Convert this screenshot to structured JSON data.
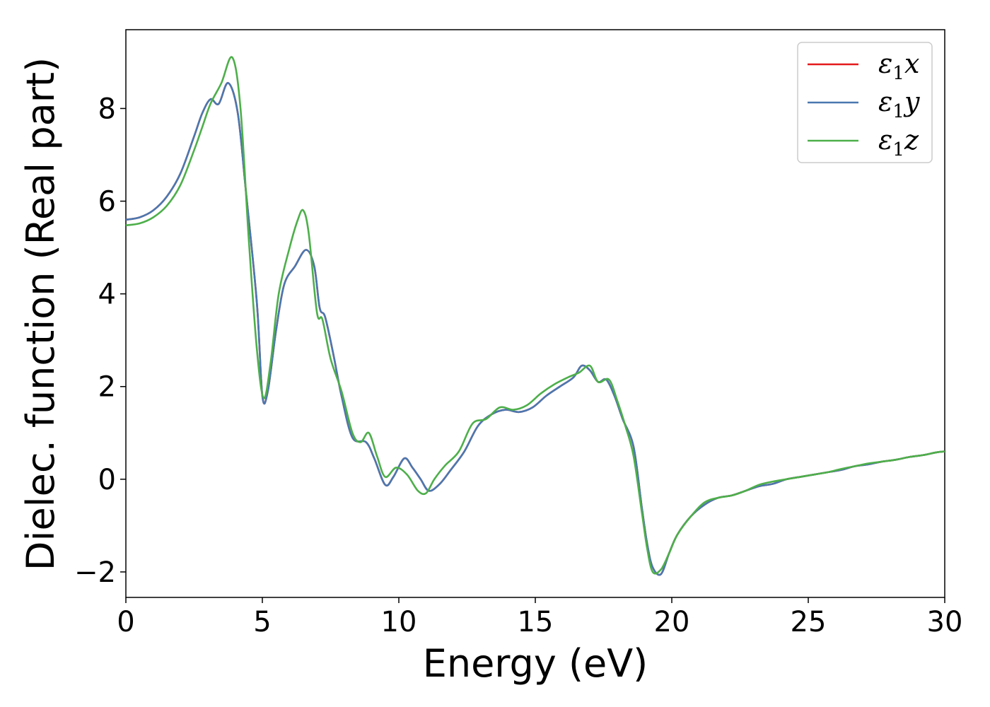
{
  "chart_data": {
    "type": "line",
    "xlabel": "Energy (eV)",
    "ylabel": "Dielec. function (Real part)",
    "xlim": [
      0,
      30
    ],
    "ylim": [
      -2.55,
      9.7
    ],
    "xticks": [
      0,
      5,
      10,
      15,
      20,
      25,
      30
    ],
    "yticks": [
      -2,
      0,
      2,
      4,
      6,
      8
    ],
    "grid": false,
    "legend_position": "top-right",
    "series": [
      {
        "name": "ε1x",
        "legend_symbol": "ε",
        "legend_sub": "1",
        "legend_var": "x",
        "color": "#e41a1c",
        "x": [
          0,
          0.5,
          1,
          1.5,
          2,
          2.5,
          2.8,
          3.1,
          3.4,
          3.75,
          4.1,
          4.4,
          4.8,
          5.0,
          5.2,
          5.5,
          5.8,
          6.2,
          6.6,
          6.9,
          7.1,
          7.3,
          7.6,
          7.9,
          8.3,
          8.8,
          9.1,
          9.5,
          9.8,
          10.2,
          10.5,
          10.8,
          11.1,
          11.5,
          11.9,
          12.4,
          12.9,
          13.4,
          13.9,
          14.4,
          14.9,
          15.4,
          15.9,
          16.4,
          16.7,
          17.0,
          17.3,
          17.6,
          17.9,
          18.2,
          18.6,
          18.9,
          19.1,
          19.3,
          19.6,
          19.9,
          20.2,
          20.7,
          21.2,
          21.7,
          22.2,
          22.7,
          23.2,
          23.7,
          24.2,
          24.7,
          25.2,
          25.7,
          26.2,
          26.7,
          27.2,
          27.7,
          28.2,
          28.7,
          29.2,
          29.7,
          30
        ],
        "y": [
          5.6,
          5.65,
          5.8,
          6.1,
          6.6,
          7.4,
          7.9,
          8.2,
          8.1,
          8.55,
          7.9,
          6.2,
          3.8,
          1.8,
          1.9,
          3.2,
          4.2,
          4.6,
          4.95,
          4.6,
          3.7,
          3.5,
          2.7,
          1.8,
          0.9,
          0.8,
          0.45,
          -0.12,
          0.05,
          0.45,
          0.25,
          0.0,
          -0.25,
          -0.1,
          0.2,
          0.6,
          1.15,
          1.4,
          1.5,
          1.45,
          1.55,
          1.8,
          2.0,
          2.2,
          2.45,
          2.35,
          2.1,
          2.15,
          1.8,
          1.3,
          0.7,
          -0.6,
          -1.4,
          -1.9,
          -2.05,
          -1.6,
          -1.2,
          -0.8,
          -0.55,
          -0.4,
          -0.35,
          -0.25,
          -0.15,
          -0.1,
          0.0,
          0.05,
          0.1,
          0.15,
          0.2,
          0.28,
          0.32,
          0.38,
          0.42,
          0.48,
          0.52,
          0.58,
          0.6
        ]
      },
      {
        "name": "ε1y",
        "legend_symbol": "ε",
        "legend_sub": "1",
        "legend_var": "y",
        "color": "#4a78b0",
        "x": [
          0,
          0.5,
          1,
          1.5,
          2,
          2.5,
          2.8,
          3.1,
          3.4,
          3.75,
          4.1,
          4.4,
          4.8,
          5.0,
          5.2,
          5.5,
          5.8,
          6.2,
          6.6,
          6.9,
          7.1,
          7.3,
          7.6,
          7.9,
          8.3,
          8.8,
          9.1,
          9.5,
          9.8,
          10.2,
          10.5,
          10.8,
          11.1,
          11.5,
          11.9,
          12.4,
          12.9,
          13.4,
          13.9,
          14.4,
          14.9,
          15.4,
          15.9,
          16.4,
          16.7,
          17.0,
          17.3,
          17.6,
          17.9,
          18.2,
          18.6,
          18.9,
          19.1,
          19.3,
          19.6,
          19.9,
          20.2,
          20.7,
          21.2,
          21.7,
          22.2,
          22.7,
          23.2,
          23.7,
          24.2,
          24.7,
          25.2,
          25.7,
          26.2,
          26.7,
          27.2,
          27.7,
          28.2,
          28.7,
          29.2,
          29.7,
          30
        ],
        "y": [
          5.6,
          5.65,
          5.8,
          6.1,
          6.6,
          7.4,
          7.9,
          8.2,
          8.1,
          8.55,
          7.9,
          6.2,
          3.8,
          1.8,
          1.9,
          3.2,
          4.2,
          4.6,
          4.95,
          4.6,
          3.7,
          3.5,
          2.7,
          1.8,
          0.9,
          0.8,
          0.45,
          -0.12,
          0.05,
          0.45,
          0.25,
          0.0,
          -0.25,
          -0.1,
          0.2,
          0.6,
          1.15,
          1.4,
          1.5,
          1.45,
          1.55,
          1.8,
          2.0,
          2.2,
          2.45,
          2.35,
          2.1,
          2.15,
          1.8,
          1.3,
          0.7,
          -0.6,
          -1.4,
          -1.9,
          -2.05,
          -1.6,
          -1.2,
          -0.8,
          -0.55,
          -0.4,
          -0.35,
          -0.25,
          -0.15,
          -0.1,
          0.0,
          0.05,
          0.1,
          0.15,
          0.2,
          0.28,
          0.32,
          0.38,
          0.42,
          0.48,
          0.52,
          0.58,
          0.6
        ]
      },
      {
        "name": "ε1z",
        "legend_symbol": "ε",
        "legend_sub": "1",
        "legend_var": "z",
        "color": "#4daf4a",
        "x": [
          0,
          0.5,
          1,
          1.5,
          2,
          2.5,
          2.8,
          3.1,
          3.5,
          3.9,
          4.2,
          4.5,
          4.8,
          5.05,
          5.3,
          5.6,
          6.0,
          6.3,
          6.5,
          6.7,
          7.0,
          7.2,
          7.5,
          7.9,
          8.3,
          8.6,
          8.9,
          9.2,
          9.5,
          9.9,
          10.3,
          10.7,
          11.0,
          11.3,
          11.7,
          12.2,
          12.7,
          13.2,
          13.7,
          14.2,
          14.7,
          15.2,
          15.7,
          16.2,
          16.6,
          17.0,
          17.3,
          17.7,
          18.0,
          18.3,
          18.6,
          18.9,
          19.1,
          19.3,
          19.6,
          19.9,
          20.2,
          20.7,
          21.2,
          21.7,
          22.2,
          22.7,
          23.2,
          23.7,
          24.2,
          24.7,
          25.2,
          25.7,
          26.2,
          26.7,
          27.2,
          27.7,
          28.2,
          28.7,
          29.2,
          29.7,
          30
        ],
        "y": [
          5.48,
          5.52,
          5.65,
          5.9,
          6.35,
          7.1,
          7.6,
          8.1,
          8.55,
          9.1,
          8.0,
          5.2,
          2.8,
          1.75,
          2.5,
          4.0,
          5.0,
          5.6,
          5.8,
          5.3,
          3.6,
          3.45,
          2.6,
          1.9,
          1.0,
          0.8,
          1.0,
          0.5,
          0.05,
          0.25,
          0.1,
          -0.25,
          -0.3,
          0.0,
          0.3,
          0.6,
          1.2,
          1.3,
          1.55,
          1.5,
          1.6,
          1.85,
          2.05,
          2.2,
          2.3,
          2.45,
          2.1,
          2.15,
          1.7,
          1.15,
          0.5,
          -0.7,
          -1.5,
          -2.0,
          -1.95,
          -1.6,
          -1.2,
          -0.8,
          -0.5,
          -0.4,
          -0.35,
          -0.25,
          -0.12,
          -0.05,
          0.0,
          0.05,
          0.1,
          0.15,
          0.22,
          0.28,
          0.34,
          0.38,
          0.42,
          0.48,
          0.52,
          0.58,
          0.6
        ]
      }
    ]
  }
}
